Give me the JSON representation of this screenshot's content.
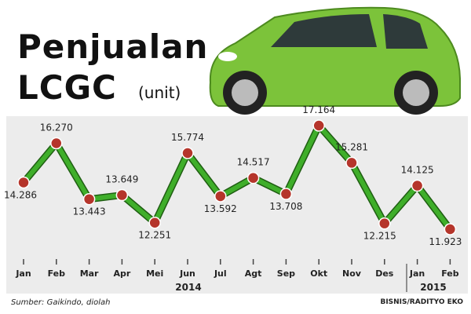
{
  "chart_data": {
    "type": "line",
    "title": "Penjualan LCGC",
    "unit_label": "(unit)",
    "categories": [
      "Jan",
      "Feb",
      "Mar",
      "Apr",
      "Mei",
      "Jun",
      "Jul",
      "Agt",
      "Sep",
      "Okt",
      "Nov",
      "Des",
      "Jan",
      "Feb"
    ],
    "values": [
      14286,
      16270,
      13443,
      13649,
      12251,
      15774,
      13592,
      14517,
      13708,
      17164,
      15281,
      12215,
      14125,
      11923
    ],
    "value_labels": [
      "14.286",
      "16.270",
      "13.443",
      "13.649",
      "12.251",
      "15.774",
      "13.592",
      "14.517",
      "13.708",
      "17.164",
      "15.281",
      "12.215",
      "14.125",
      "11.923"
    ],
    "years": [
      "2014",
      "2015"
    ],
    "color": "#3fae2a",
    "marker_color": "#b5352b",
    "source": "Sumber: Gaikindo, diolah",
    "credit": "BISNIS/RADITYO EKO"
  }
}
